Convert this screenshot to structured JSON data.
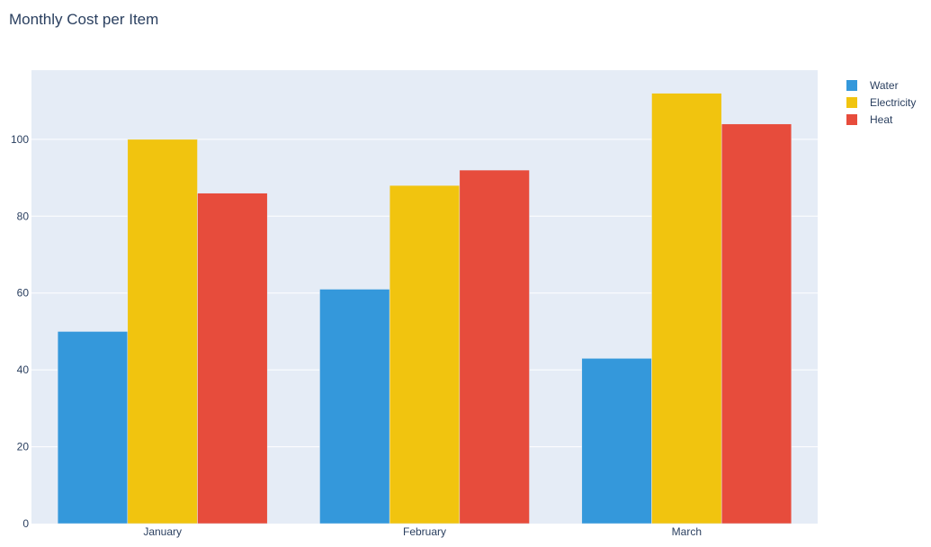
{
  "chart_data": {
    "type": "bar",
    "title": "Monthly Cost per Item",
    "xlabel": "",
    "ylabel": "",
    "categories": [
      "January",
      "February",
      "March"
    ],
    "series": [
      {
        "name": "Water",
        "values": [
          50,
          61,
          43
        ],
        "color": "#3498db"
      },
      {
        "name": "Electricity",
        "values": [
          100,
          88,
          112
        ],
        "color": "#f1c40f"
      },
      {
        "name": "Heat",
        "values": [
          86,
          92,
          104
        ],
        "color": "#e74c3c"
      }
    ],
    "ylim": [
      0,
      118
    ],
    "yticks": [
      "0",
      "20",
      "40",
      "60",
      "80",
      "100"
    ],
    "grid": true,
    "legend_position": "top-right",
    "plot_background": "#e5ecf6"
  }
}
